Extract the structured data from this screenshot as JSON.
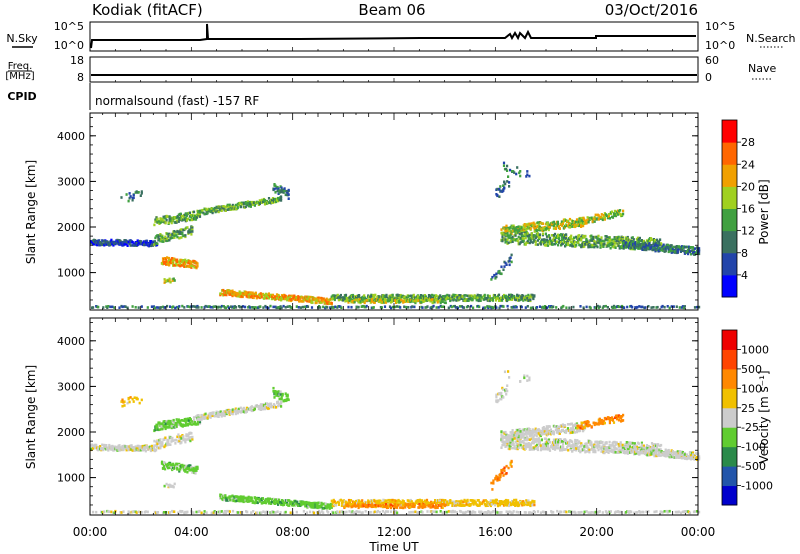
{
  "header": {
    "site": "Kodiak (fitACF)",
    "beam": "Beam 06",
    "date": "03/Oct/2016"
  },
  "strips": {
    "nsky_label": "N.Sky",
    "nsky_ticks": [
      "10^5",
      "10^0"
    ],
    "nsearch_label": "N.Search",
    "nsearch_ticks": [
      "10^5",
      "10^0"
    ],
    "freq_label_1": "Freq.",
    "freq_label_2": "[MHz]",
    "freq_ticks": [
      "18",
      "8"
    ],
    "nave_label": "Nave",
    "nave_ticks": [
      "60",
      "0"
    ],
    "cpid_label": "CPID",
    "cpid_text": "normalsound (fast) -157 RF"
  },
  "time_axis": {
    "label": "Time UT",
    "ticks": [
      "00:00",
      "04:00",
      "08:00",
      "12:00",
      "16:00",
      "20:00",
      "00:00"
    ]
  },
  "chart_data": [
    {
      "type": "heatmap",
      "panel": "power",
      "ylabel": "Slant Range [km]",
      "yticks": [
        "1000",
        "2000",
        "3000",
        "4000"
      ],
      "ylim": [
        180,
        4500
      ],
      "xlim_hours": [
        0,
        24
      ],
      "colorbar_label": "Power [dB]",
      "colorbar_ticks": [
        "4",
        "8",
        "12",
        "16",
        "20",
        "24",
        "28"
      ],
      "colors": [
        "#0000ff",
        "#2244aa",
        "#3a7060",
        "#40a040",
        "#a0d020",
        "#f0a000",
        "#ff6600",
        "#ff0000"
      ]
    },
    {
      "type": "heatmap",
      "panel": "velocity",
      "ylabel": "Slant Range [km]",
      "yticks": [
        "1000",
        "2000",
        "3000",
        "4000"
      ],
      "ylim": [
        180,
        4500
      ],
      "xlim_hours": [
        0,
        24
      ],
      "colorbar_label": "Velocity [m s⁻¹]",
      "colorbar_ticks": [
        "1000",
        "500",
        "100",
        "25",
        "-25",
        "-100",
        "-500",
        "-1000"
      ],
      "colors": [
        "#0000cc",
        "#2255aa",
        "#2a8a4a",
        "#60cc30",
        "#cccccc",
        "#f0c000",
        "#ff8800",
        "#ff4400",
        "#ee0000"
      ]
    }
  ]
}
